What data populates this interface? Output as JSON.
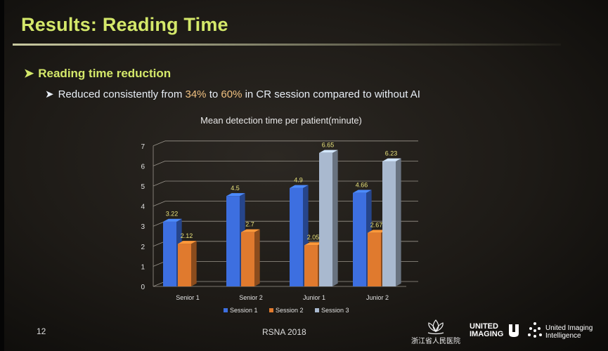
{
  "slide": {
    "title": "Results: Reading Time",
    "bullet_level1": "Reading time reduction",
    "bullet_level2_prefix": "Reduced consistently from ",
    "bullet_level2_from": "34%",
    "bullet_level2_to_word": " to ",
    "bullet_level2_to": "60%",
    "bullet_level2_suffix": " in CR session compared to without AI",
    "page_number": "12",
    "footer_center": "RSNA 2018",
    "logo_hospital_text": "浙江省人民医院",
    "logo_united_imaging_line1": "UNITED",
    "logo_united_imaging_line2": "IMAGING",
    "logo_uii_line1": "United Imaging",
    "logo_uii_line2": "Intelligence"
  },
  "colors": {
    "title": "#d4e86a",
    "session1": "#3d6fe0",
    "session2": "#e07a2e",
    "session3": "#a9b9cf"
  },
  "chart_data": {
    "type": "bar",
    "title": "Mean detection time per patient(minute)",
    "categories": [
      "Senior 1",
      "Senior 2",
      "Junior 1",
      "Junior 2"
    ],
    "series": [
      {
        "name": "Session 1",
        "values": [
          3.22,
          4.5,
          4.9,
          4.66
        ]
      },
      {
        "name": "Session 2",
        "values": [
          2.12,
          2.7,
          2.05,
          2.67
        ]
      },
      {
        "name": "Session 3",
        "values": [
          null,
          null,
          6.65,
          6.23
        ]
      }
    ],
    "data_labels": [
      [
        "3.22",
        "4.5",
        "4.9",
        "4.66"
      ],
      [
        "2.12",
        "2.7",
        "2.05",
        "2.67"
      ],
      [
        "",
        "",
        "6.65",
        "6.23"
      ]
    ],
    "y_ticks": [
      "0",
      "1",
      "2",
      "3",
      "4",
      "5",
      "6",
      "7"
    ],
    "ylim": [
      0,
      7
    ],
    "grid": true,
    "legend_position": "bottom",
    "style": "3d-column"
  }
}
